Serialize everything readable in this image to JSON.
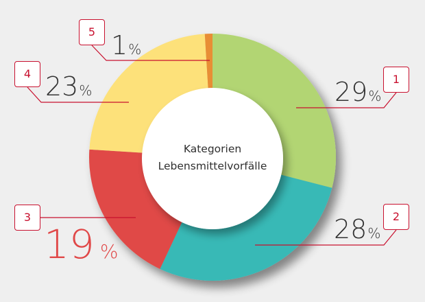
{
  "chart_data": {
    "type": "pie",
    "subtype": "donut",
    "title": "Kategorien Lebensmittelvorfälle",
    "title_lines": [
      "Kategorien",
      "Lebensmittelvorfälle"
    ],
    "start_angle": "12 o'clock, clockwise",
    "slices": [
      {
        "id": 1,
        "badge": "1",
        "value": 29,
        "label": "29",
        "unit": "%",
        "color": "#b2d573"
      },
      {
        "id": 2,
        "badge": "2",
        "value": 28,
        "label": "28",
        "unit": "%",
        "color": "#38b9b6"
      },
      {
        "id": 3,
        "badge": "3",
        "value": 19,
        "label": "19",
        "unit": "%",
        "color": "#e04a47",
        "highlighted": true
      },
      {
        "id": 4,
        "badge": "4",
        "value": 23,
        "label": "23",
        "unit": "%",
        "color": "#fde17a"
      },
      {
        "id": 5,
        "badge": "5",
        "value": 1,
        "label": "1",
        "unit": "%",
        "color": "#e88e36"
      }
    ],
    "categories": [
      "1",
      "2",
      "3",
      "4",
      "5"
    ],
    "values": [
      29,
      28,
      19,
      23,
      1
    ],
    "legend": "numbered callout badges"
  },
  "colors": {
    "background": "#efefef",
    "callout": "#c8102e",
    "text": "#333333",
    "highlight_text": "#e04848"
  }
}
